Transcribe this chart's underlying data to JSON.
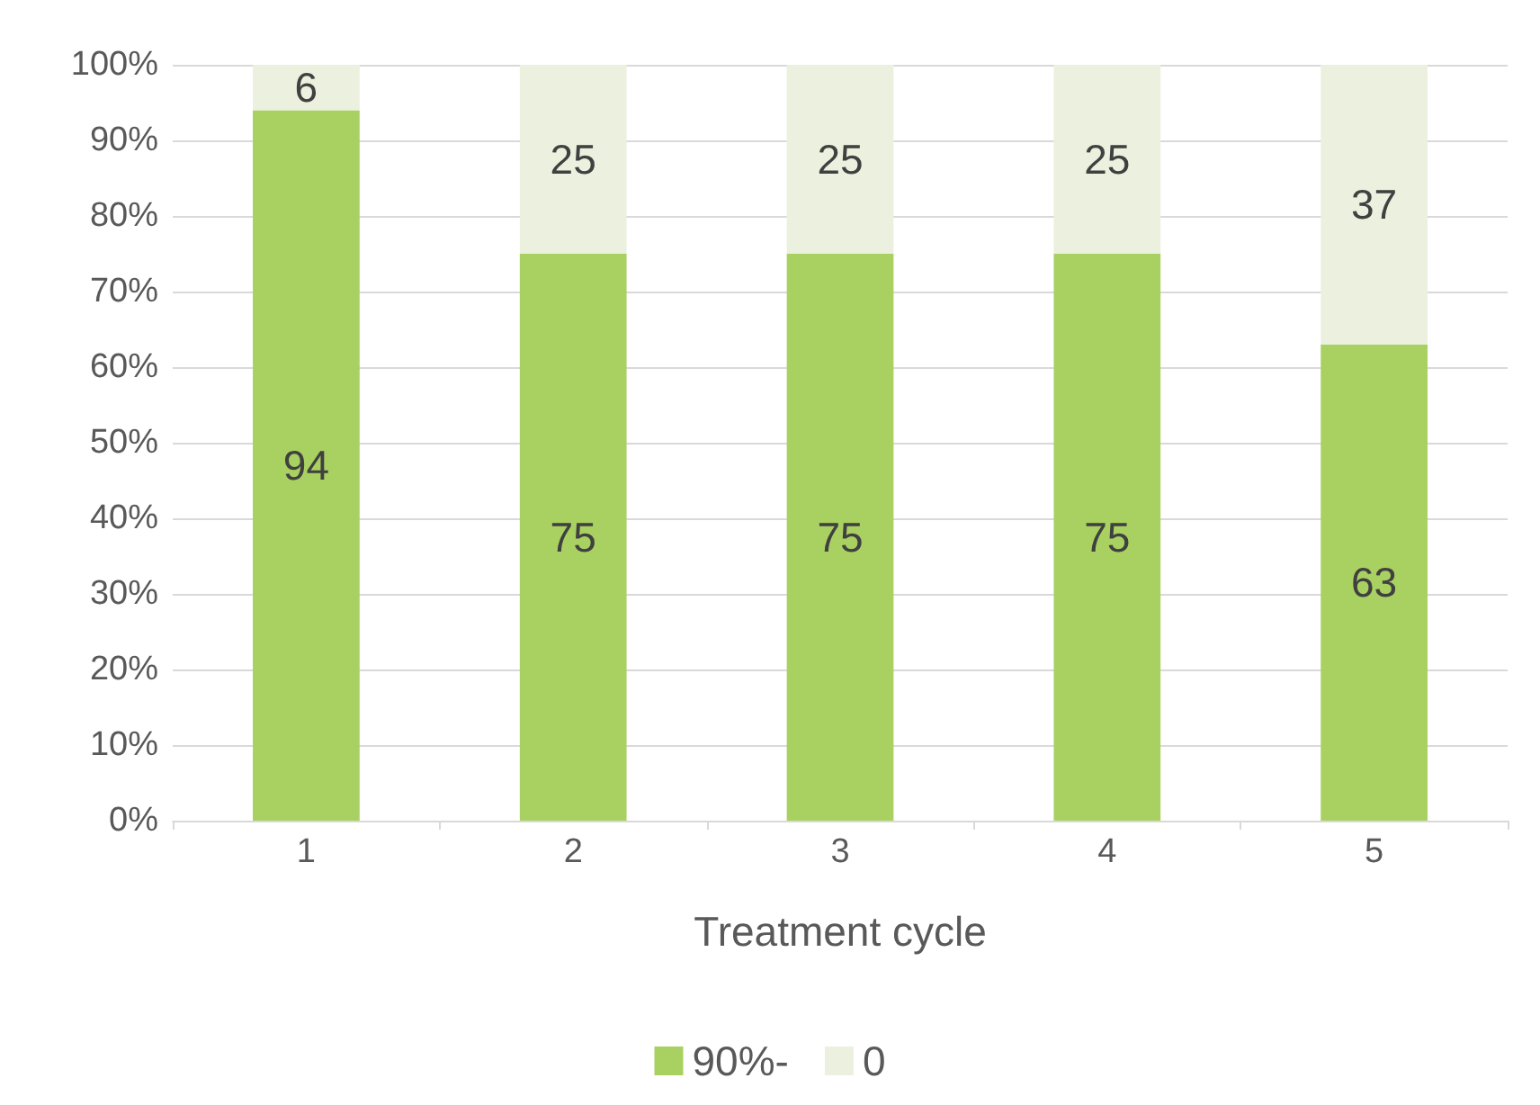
{
  "chart_data": {
    "type": "bar",
    "stacked": true,
    "xlabel": "Treatment cycle",
    "categories": [
      "1",
      "2",
      "3",
      "4",
      "5"
    ],
    "series": [
      {
        "name": "90%-",
        "color": "#a9d161",
        "values": [
          94,
          75,
          75,
          75,
          63
        ]
      },
      {
        "name": "0",
        "color": "#ebf1de",
        "values": [
          6,
          25,
          25,
          25,
          37
        ]
      }
    ],
    "ylim": [
      0,
      100
    ],
    "yticks": [
      {
        "value": 0,
        "label": "0%"
      },
      {
        "value": 10,
        "label": "10%"
      },
      {
        "value": 20,
        "label": "20%"
      },
      {
        "value": 30,
        "label": "30%"
      },
      {
        "value": 40,
        "label": "40%"
      },
      {
        "value": 50,
        "label": "50%"
      },
      {
        "value": 60,
        "label": "60%"
      },
      {
        "value": 70,
        "label": "70%"
      },
      {
        "value": 80,
        "label": "80%"
      },
      {
        "value": 90,
        "label": "90%"
      },
      {
        "value": 100,
        "label": "100%"
      }
    ],
    "grid": "y",
    "legend": "bottom",
    "data_labels": true
  }
}
